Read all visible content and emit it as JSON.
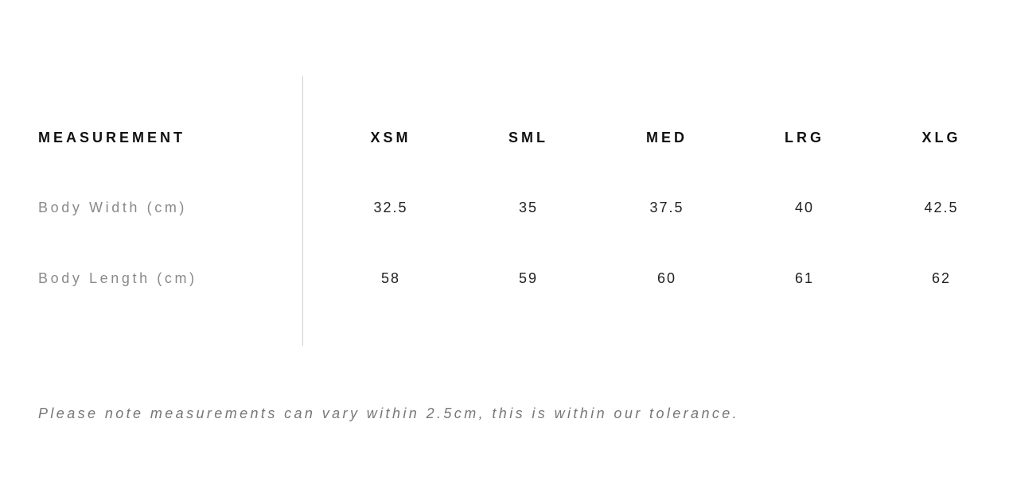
{
  "table": {
    "header_label": "MEASUREMENT",
    "sizes": [
      "XSM",
      "SML",
      "MED",
      "LRG",
      "XLG"
    ],
    "rows": [
      {
        "label": "Body Width (cm)",
        "values": [
          "32.5",
          "35",
          "37.5",
          "40",
          "42.5"
        ]
      },
      {
        "label": "Body Length (cm)",
        "values": [
          "58",
          "59",
          "60",
          "61",
          "62"
        ]
      }
    ]
  },
  "note": "Please note measurements can vary within 2.5cm, this is within our tolerance."
}
